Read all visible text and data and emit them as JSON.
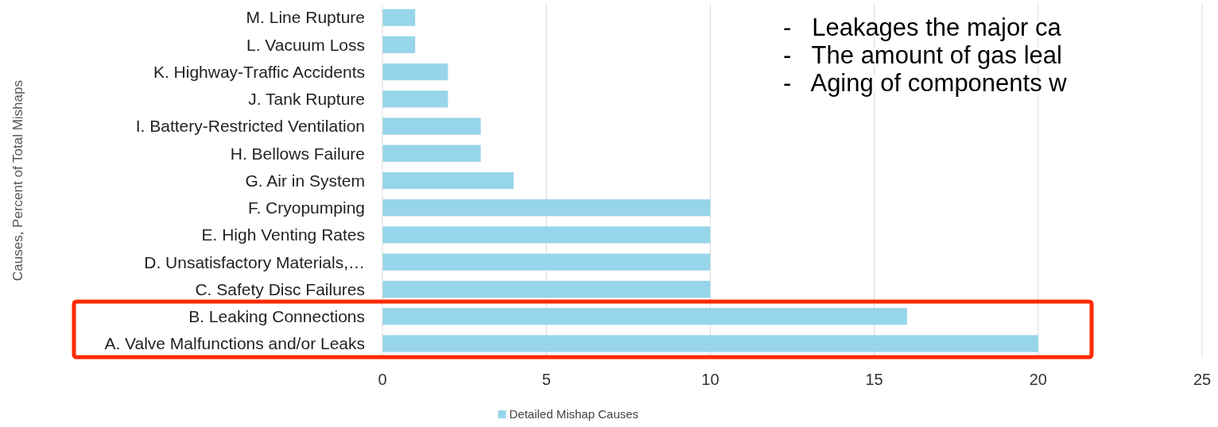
{
  "chart_data": {
    "type": "bar",
    "orientation": "horizontal",
    "categories": [
      "M. Line Rupture",
      "L. Vacuum Loss",
      "K. Highway-Traffic Accidents",
      "J. Tank Rupture",
      "I. Battery-Restricted Ventilation",
      "H. Bellows Failure",
      "G. Air in System",
      "F. Cryopumping",
      "E. High Venting Rates",
      "D. Unsatisfactory Materials,…",
      "C. Safety Disc Failures",
      "B. Leaking Connections",
      "A. Valve Malfunctions and/or Leaks"
    ],
    "series": [
      {
        "name": "Detailed Mishap Causes",
        "color": "#97d5ea",
        "values": [
          1,
          1,
          2,
          2,
          3,
          3,
          4,
          10,
          10,
          10,
          10,
          16,
          20
        ]
      }
    ],
    "xlim": [
      0,
      25
    ],
    "xticks": [
      0,
      5,
      10,
      15,
      20,
      25
    ],
    "grid": "x",
    "legend": "bottom",
    "annotations": [
      "Causes, Percent of Total Mishaps",
      "-   Leakages the major ca",
      "-   The amount of gas leal",
      "-   Aging of components w"
    ]
  }
}
